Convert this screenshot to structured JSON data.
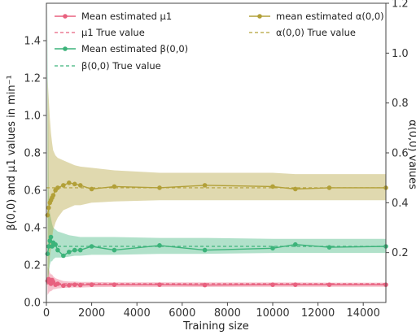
{
  "chart_data": {
    "type": "line",
    "xlabel": "Training size",
    "ylabel_left": "β(0,0) and μ1 values in min⁻¹",
    "ylabel_right": "α(0,0) values",
    "xlim": [
      0,
      15000
    ],
    "ylim_left": [
      0,
      1.6
    ],
    "ylim_right": [
      0,
      1.2
    ],
    "xticks": [
      0,
      2000,
      4000,
      6000,
      8000,
      10000,
      12000,
      14000
    ],
    "yticks_left": [
      0.0,
      0.2,
      0.4,
      0.6,
      0.8,
      1.0,
      1.2,
      1.4
    ],
    "yticks_right": [
      0.2,
      0.4,
      0.6,
      0.8,
      1.0,
      1.2
    ],
    "grid": false,
    "legend_placement": "top",
    "x": [
      50,
      100,
      150,
      200,
      250,
      300,
      400,
      500,
      750,
      1000,
      1250,
      1500,
      2000,
      3000,
      5000,
      7000,
      10000,
      11000,
      12500,
      15000
    ],
    "series": [
      {
        "name": "Mean estimated μ1",
        "axis": "left",
        "color": "#e8617f",
        "values": [
          0.115,
          0.125,
          0.11,
          0.1,
          0.12,
          0.11,
          0.095,
          0.1,
          0.09,
          0.092,
          0.095,
          0.093,
          0.095,
          0.095,
          0.095,
          0.093,
          0.095,
          0.095,
          0.095,
          0.095
        ],
        "band_low": [
          0.04,
          0.05,
          0.06,
          0.06,
          0.065,
          0.07,
          0.072,
          0.075,
          0.078,
          0.08,
          0.08,
          0.08,
          0.082,
          0.083,
          0.083,
          0.083,
          0.084,
          0.084,
          0.084,
          0.084
        ],
        "band_high": [
          0.19,
          0.18,
          0.16,
          0.15,
          0.15,
          0.14,
          0.13,
          0.125,
          0.115,
          0.112,
          0.112,
          0.11,
          0.11,
          0.108,
          0.108,
          0.107,
          0.107,
          0.107,
          0.106,
          0.106
        ],
        "true_value": 0.1,
        "true_label": "μ1 True value"
      },
      {
        "name": "Mean estimated β(0,0)",
        "axis": "left",
        "color": "#3cb37a",
        "values": [
          0.26,
          0.3,
          0.33,
          0.35,
          0.3,
          0.32,
          0.31,
          0.28,
          0.25,
          0.27,
          0.28,
          0.28,
          0.3,
          0.28,
          0.305,
          0.28,
          0.29,
          0.31,
          0.295,
          0.3
        ],
        "band_low": [
          0.1,
          0.15,
          0.2,
          0.22,
          0.22,
          0.23,
          0.24,
          0.24,
          0.24,
          0.245,
          0.25,
          0.25,
          0.255,
          0.255,
          0.26,
          0.26,
          0.265,
          0.265,
          0.265,
          0.265
        ],
        "band_high": [
          1.6,
          0.6,
          0.48,
          0.45,
          0.42,
          0.4,
          0.39,
          0.38,
          0.37,
          0.36,
          0.355,
          0.35,
          0.35,
          0.35,
          0.345,
          0.345,
          0.34,
          0.34,
          0.34,
          0.34
        ],
        "true_value": 0.3,
        "true_label": "β(0,0) True value"
      },
      {
        "name": "mean estimated α(0,0)",
        "axis": "right",
        "color": "#b2a038",
        "values": [
          0.35,
          0.38,
          0.4,
          0.41,
          0.42,
          0.43,
          0.45,
          0.46,
          0.47,
          0.48,
          0.475,
          0.47,
          0.455,
          0.465,
          0.46,
          0.47,
          0.465,
          0.455,
          0.46,
          0.46
        ],
        "band_low": [
          0.06,
          0.12,
          0.18,
          0.22,
          0.26,
          0.29,
          0.32,
          0.34,
          0.37,
          0.38,
          0.39,
          0.39,
          0.4,
          0.405,
          0.41,
          0.41,
          0.41,
          0.41,
          0.41,
          0.41
        ],
        "band_high": [
          0.9,
          0.82,
          0.74,
          0.68,
          0.64,
          0.61,
          0.59,
          0.58,
          0.57,
          0.56,
          0.55,
          0.545,
          0.54,
          0.53,
          0.52,
          0.52,
          0.52,
          0.515,
          0.515,
          0.515
        ],
        "true_value": 0.46,
        "true_label": "α(0,0) True value"
      }
    ]
  }
}
